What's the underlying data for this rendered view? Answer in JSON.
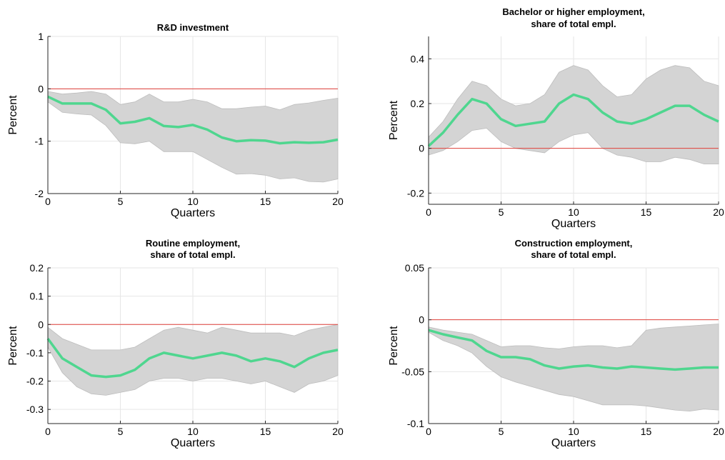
{
  "chart_data": [
    {
      "type": "area",
      "title": [
        "R&D investment"
      ],
      "xlabel": "Quarters",
      "ylabel": "Percent",
      "xlim": [
        0,
        20
      ],
      "ylim": [
        -2,
        1
      ],
      "xticks": [
        0,
        5,
        10,
        15,
        20
      ],
      "yticks": [
        -2,
        -1,
        0,
        1
      ],
      "ytick_labels": [
        "-2",
        "-1",
        "0",
        "1"
      ],
      "grid": true,
      "reference_line": 0,
      "x": [
        0,
        1,
        2,
        3,
        4,
        5,
        6,
        7,
        8,
        9,
        10,
        11,
        12,
        13,
        14,
        15,
        16,
        17,
        18,
        19,
        20
      ],
      "series": [
        {
          "role": "upper",
          "values": [
            -0.05,
            -0.1,
            -0.08,
            -0.05,
            -0.1,
            -0.3,
            -0.25,
            -0.1,
            -0.25,
            -0.25,
            -0.2,
            -0.25,
            -0.38,
            -0.38,
            -0.35,
            -0.33,
            -0.4,
            -0.3,
            -0.27,
            -0.22,
            -0.18
          ]
        },
        {
          "role": "median",
          "values": [
            -0.15,
            -0.28,
            -0.28,
            -0.28,
            -0.4,
            -0.66,
            -0.63,
            -0.56,
            -0.71,
            -0.73,
            -0.69,
            -0.78,
            -0.93,
            -1.0,
            -0.98,
            -0.99,
            -1.04,
            -1.02,
            -1.03,
            -1.02,
            -0.97
          ]
        },
        {
          "role": "lower",
          "values": [
            -0.25,
            -0.45,
            -0.48,
            -0.5,
            -0.7,
            -1.03,
            -1.05,
            -1.0,
            -1.2,
            -1.2,
            -1.2,
            -1.35,
            -1.5,
            -1.63,
            -1.62,
            -1.65,
            -1.72,
            -1.7,
            -1.77,
            -1.78,
            -1.72
          ]
        }
      ]
    },
    {
      "type": "area",
      "title": [
        "Bachelor or higher employment,",
        "share of total empl."
      ],
      "xlabel": "Quarters",
      "ylabel": "Percent",
      "xlim": [
        0,
        20
      ],
      "ylim": [
        -0.25,
        0.5
      ],
      "xticks": [
        0,
        5,
        10,
        15,
        20
      ],
      "yticks": [
        -0.2,
        0,
        0.2,
        0.4
      ],
      "ytick_labels": [
        "-0.2",
        "0",
        "0.2",
        "0.4"
      ],
      "grid": true,
      "reference_line": 0,
      "x": [
        0,
        1,
        2,
        3,
        4,
        5,
        6,
        7,
        8,
        9,
        10,
        11,
        12,
        13,
        14,
        15,
        16,
        17,
        18,
        19,
        20
      ],
      "series": [
        {
          "role": "upper",
          "values": [
            0.05,
            0.12,
            0.22,
            0.3,
            0.28,
            0.22,
            0.19,
            0.2,
            0.24,
            0.34,
            0.37,
            0.35,
            0.28,
            0.23,
            0.24,
            0.31,
            0.35,
            0.37,
            0.36,
            0.3,
            0.28
          ]
        },
        {
          "role": "median",
          "values": [
            0.01,
            0.07,
            0.15,
            0.22,
            0.2,
            0.13,
            0.1,
            0.11,
            0.12,
            0.2,
            0.24,
            0.22,
            0.16,
            0.12,
            0.11,
            0.13,
            0.16,
            0.19,
            0.19,
            0.15,
            0.12
          ]
        },
        {
          "role": "lower",
          "values": [
            -0.03,
            -0.01,
            0.03,
            0.08,
            0.09,
            0.03,
            0.0,
            -0.01,
            -0.02,
            0.03,
            0.06,
            0.07,
            0.0,
            -0.03,
            -0.04,
            -0.06,
            -0.06,
            -0.04,
            -0.05,
            -0.07,
            -0.07
          ]
        }
      ]
    },
    {
      "type": "area",
      "title": [
        "Routine employment,",
        "share of total empl."
      ],
      "xlabel": "Quarters",
      "ylabel": "Percent",
      "xlim": [
        0,
        20
      ],
      "ylim": [
        -0.35,
        0.2
      ],
      "xticks": [
        0,
        5,
        10,
        15,
        20
      ],
      "yticks": [
        -0.3,
        -0.2,
        -0.1,
        0,
        0.1,
        0.2
      ],
      "ytick_labels": [
        "-0.3",
        "-0.2",
        "-0.1",
        "0",
        "0.1",
        "0.2"
      ],
      "grid": true,
      "reference_line": 0,
      "x": [
        0,
        1,
        2,
        3,
        4,
        5,
        6,
        7,
        8,
        9,
        10,
        11,
        12,
        13,
        14,
        15,
        16,
        17,
        18,
        19,
        20
      ],
      "series": [
        {
          "role": "upper",
          "values": [
            -0.01,
            -0.05,
            -0.07,
            -0.09,
            -0.09,
            -0.09,
            -0.08,
            -0.05,
            -0.02,
            -0.01,
            -0.02,
            -0.03,
            -0.01,
            -0.02,
            -0.03,
            -0.03,
            -0.03,
            -0.04,
            -0.02,
            -0.01,
            0.0
          ]
        },
        {
          "role": "median",
          "values": [
            -0.05,
            -0.12,
            -0.15,
            -0.18,
            -0.185,
            -0.18,
            -0.16,
            -0.12,
            -0.1,
            -0.11,
            -0.12,
            -0.11,
            -0.1,
            -0.11,
            -0.13,
            -0.12,
            -0.13,
            -0.15,
            -0.12,
            -0.1,
            -0.09
          ]
        },
        {
          "role": "lower",
          "values": [
            -0.08,
            -0.17,
            -0.22,
            -0.245,
            -0.25,
            -0.24,
            -0.23,
            -0.2,
            -0.19,
            -0.19,
            -0.2,
            -0.19,
            -0.19,
            -0.2,
            -0.21,
            -0.2,
            -0.22,
            -0.24,
            -0.21,
            -0.2,
            -0.18
          ]
        }
      ]
    },
    {
      "type": "area",
      "title": [
        "Construction employment,",
        "share of total empl."
      ],
      "xlabel": "Quarters",
      "ylabel": "Percent",
      "xlim": [
        0,
        20
      ],
      "ylim": [
        -0.1,
        0.05
      ],
      "xticks": [
        0,
        5,
        10,
        15,
        20
      ],
      "yticks": [
        -0.1,
        -0.05,
        0,
        0.05
      ],
      "ytick_labels": [
        "-0.1",
        "-0.05",
        "0",
        "0.05"
      ],
      "grid": true,
      "reference_line": 0,
      "x": [
        0,
        1,
        2,
        3,
        4,
        5,
        6,
        7,
        8,
        9,
        10,
        11,
        12,
        13,
        14,
        15,
        16,
        17,
        18,
        19,
        20
      ],
      "series": [
        {
          "role": "upper",
          "values": [
            -0.007,
            -0.01,
            -0.012,
            -0.014,
            -0.02,
            -0.026,
            -0.025,
            -0.025,
            -0.027,
            -0.028,
            -0.026,
            -0.025,
            -0.025,
            -0.027,
            -0.025,
            -0.01,
            -0.008,
            -0.007,
            -0.006,
            -0.005,
            -0.004
          ]
        },
        {
          "role": "median",
          "values": [
            -0.01,
            -0.014,
            -0.017,
            -0.02,
            -0.03,
            -0.036,
            -0.036,
            -0.038,
            -0.044,
            -0.047,
            -0.045,
            -0.044,
            -0.046,
            -0.047,
            -0.045,
            -0.046,
            -0.047,
            -0.048,
            -0.047,
            -0.046,
            -0.046
          ]
        },
        {
          "role": "lower",
          "values": [
            -0.012,
            -0.02,
            -0.025,
            -0.032,
            -0.045,
            -0.055,
            -0.06,
            -0.064,
            -0.068,
            -0.072,
            -0.074,
            -0.078,
            -0.082,
            -0.082,
            -0.082,
            -0.083,
            -0.085,
            -0.087,
            -0.088,
            -0.086,
            -0.087
          ]
        }
      ]
    }
  ]
}
